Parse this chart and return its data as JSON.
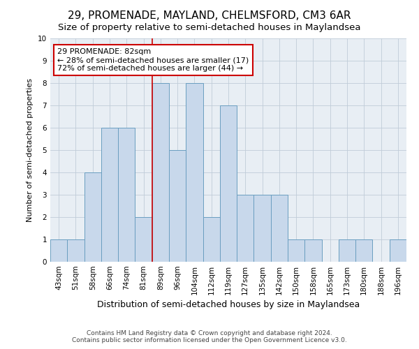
{
  "title": "29, PROMENADE, MAYLAND, CHELMSFORD, CM3 6AR",
  "subtitle": "Size of property relative to semi-detached houses in Maylandsea",
  "xlabel": "Distribution of semi-detached houses by size in Maylandsea",
  "ylabel": "Number of semi-detached properties",
  "categories": [
    "43sqm",
    "51sqm",
    "58sqm",
    "66sqm",
    "74sqm",
    "81sqm",
    "89sqm",
    "96sqm",
    "104sqm",
    "112sqm",
    "119sqm",
    "127sqm",
    "135sqm",
    "142sqm",
    "150sqm",
    "158sqm",
    "165sqm",
    "173sqm",
    "180sqm",
    "188sqm",
    "196sqm"
  ],
  "values": [
    1,
    1,
    4,
    6,
    6,
    2,
    8,
    5,
    8,
    2,
    7,
    3,
    3,
    3,
    1,
    1,
    0,
    1,
    1,
    0,
    1
  ],
  "bar_color": "#c8d8eb",
  "bar_edge_color": "#6a9ec0",
  "subject_label": "29 PROMENADE: 82sqm",
  "pct_smaller": 28,
  "n_smaller": 17,
  "pct_larger": 72,
  "n_larger": 44,
  "vline_x_index": 5.5,
  "ylim": [
    0,
    10
  ],
  "yticks": [
    0,
    1,
    2,
    3,
    4,
    5,
    6,
    7,
    8,
    9,
    10
  ],
  "annotation_box_color": "#ffffff",
  "annotation_box_edge": "#cc0000",
  "vline_color": "#cc0000",
  "bg_color": "#e8eef4",
  "footer1": "Contains HM Land Registry data © Crown copyright and database right 2024.",
  "footer2": "Contains public sector information licensed under the Open Government Licence v3.0.",
  "title_fontsize": 11,
  "subtitle_fontsize": 9.5,
  "xlabel_fontsize": 9,
  "ylabel_fontsize": 8,
  "tick_fontsize": 7.5,
  "annotation_fontsize": 8,
  "footer_fontsize": 6.5
}
